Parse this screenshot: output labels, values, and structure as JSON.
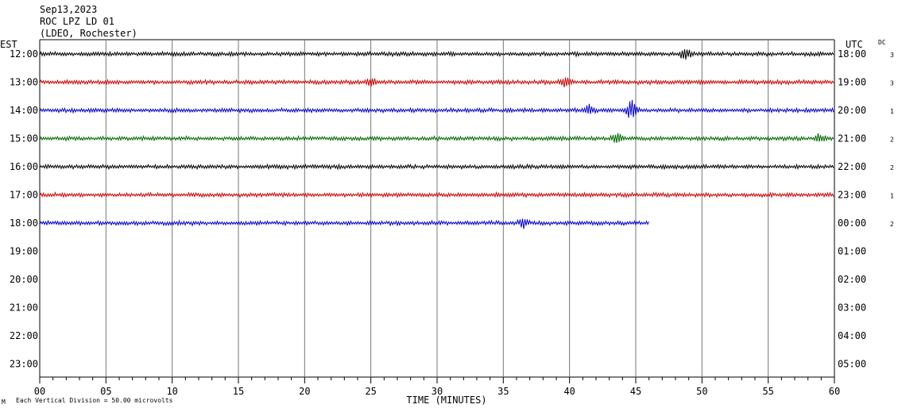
{
  "header": {
    "date": "Sep13,2023",
    "station": "ROC LPZ LD 01",
    "network": "(LDEO, Rochester)"
  },
  "left_axis_title": "EST",
  "right_axis_title": "UTC",
  "dc_title": "DC",
  "footer": {
    "scale_note": "Each Vertical Division =   50.00 microvolts"
  },
  "chart_data": {
    "type": "line",
    "title": "Sep13,2023 ROC LPZ LD 01 (LDEO, Rochester)",
    "xlabel": "TIME (MINUTES)",
    "xlim": [
      0,
      60
    ],
    "x_ticks": [
      "00",
      "05",
      "10",
      "15",
      "20",
      "25",
      "30",
      "35",
      "40",
      "45",
      "50",
      "55",
      "60"
    ],
    "est_labels": [
      "12:00",
      "13:00",
      "14:00",
      "15:00",
      "16:00",
      "17:00",
      "18:00",
      "19:00",
      "20:00",
      "21:00",
      "22:00",
      "23:00"
    ],
    "utc_labels": [
      "18:00",
      "19:00",
      "20:00",
      "21:00",
      "22:00",
      "23:00",
      "00:00",
      "01:00",
      "02:00",
      "03:00",
      "04:00",
      "05:00"
    ],
    "colors": [
      "#000000",
      "#cc0000",
      "#0000cc",
      "#006600"
    ],
    "series": [
      {
        "row": 0,
        "color": "#000000",
        "dc": "3",
        "end_minute": 60
      },
      {
        "row": 1,
        "color": "#cc0000",
        "dc": "3",
        "end_minute": 60
      },
      {
        "row": 2,
        "color": "#0000cc",
        "dc": "1",
        "end_minute": 60
      },
      {
        "row": 3,
        "color": "#006600",
        "dc": "2",
        "end_minute": 60
      },
      {
        "row": 4,
        "color": "#000000",
        "dc": "2",
        "end_minute": 60
      },
      {
        "row": 5,
        "color": "#cc0000",
        "dc": "1",
        "end_minute": 60
      },
      {
        "row": 6,
        "color": "#0000cc",
        "dc": "2",
        "end_minute": 46
      }
    ],
    "events": [
      {
        "row": 0,
        "minute": 48.8,
        "amplitude": 1.8
      },
      {
        "row": 1,
        "minute": 25.0,
        "amplitude": 1.4
      },
      {
        "row": 1,
        "minute": 39.7,
        "amplitude": 1.4
      },
      {
        "row": 2,
        "minute": 44.7,
        "amplitude": 3.0
      },
      {
        "row": 2,
        "minute": 41.5,
        "amplitude": 1.6
      },
      {
        "row": 3,
        "minute": 43.6,
        "amplitude": 1.8
      },
      {
        "row": 3,
        "minute": 58.9,
        "amplitude": 1.4
      },
      {
        "row": 6,
        "minute": 36.5,
        "amplitude": 1.4
      }
    ],
    "grid": true
  }
}
